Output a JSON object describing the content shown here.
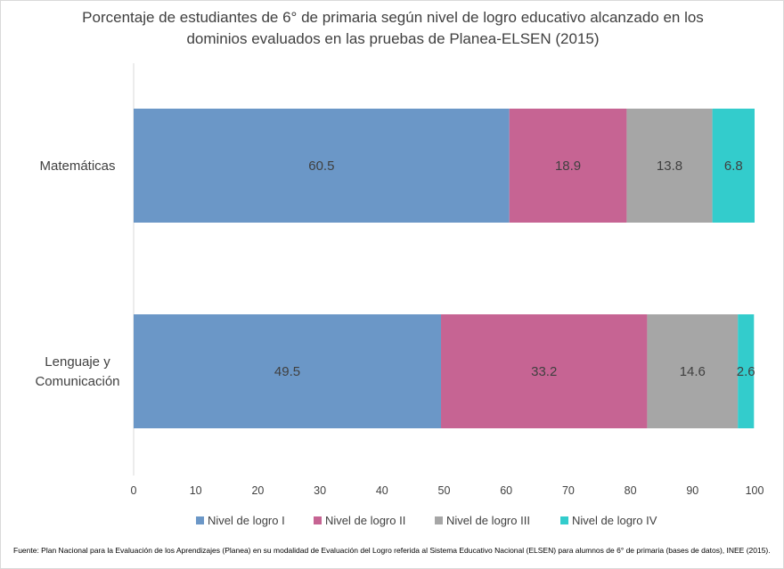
{
  "chart_data": {
    "type": "bar",
    "orientation": "horizontal",
    "stacked": true,
    "title_lines": [
      "Porcentaje de estudiantes de 6° de primaria según nivel de logro educativo alcanzado en los",
      "dominios evaluados en las pruebas de Planea-ELSEN (2015)"
    ],
    "categories": [
      [
        "Matemáticas"
      ],
      [
        "Lenguaje y",
        "Comunicación"
      ]
    ],
    "series": [
      {
        "name": "Nivel de logro  I",
        "color": "#6b97c7",
        "values": [
          60.5,
          49.5
        ]
      },
      {
        "name": "Nivel de logro  II",
        "color": "#c66493",
        "values": [
          18.9,
          33.2
        ]
      },
      {
        "name": "Nivel de logro  III",
        "color": "#a6a6a6",
        "values": [
          13.8,
          14.6
        ]
      },
      {
        "name": "Nivel de logro  IV",
        "color": "#33cccc",
        "values": [
          6.8,
          2.6
        ]
      }
    ],
    "xlim": [
      0,
      100
    ],
    "xticks": [
      0,
      10,
      20,
      30,
      40,
      50,
      60,
      70,
      80,
      90,
      100
    ],
    "grid": false,
    "legend_position": "bottom"
  },
  "source": "Fuente: Plan Nacional para la Evaluación de los Aprendizajes (Planea) en su modalidad de Evaluación del Logro referida al Sistema Educativo Nacional (ELSEN) para alumnos de 6° de primaria  (bases de datos), INEE (2015)."
}
